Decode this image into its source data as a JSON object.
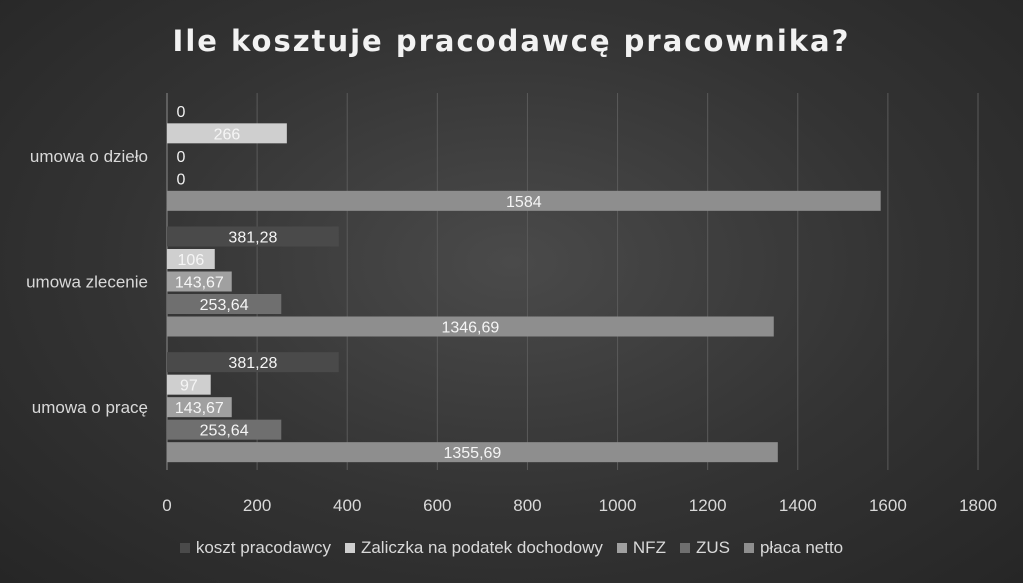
{
  "chart_data": {
    "type": "bar",
    "orientation": "horizontal",
    "title": "Ile kosztuje pracodawcę pracownika?",
    "categories": [
      "umowa o pracę",
      "umowa zlecenie",
      "umowa o dzieło"
    ],
    "category_order": "bottom-to-top",
    "series": [
      {
        "name": "koszt pracodawcy",
        "color": "#4a4a4a",
        "values": [
          381.28,
          381.28,
          0
        ],
        "labels": [
          "381,28",
          "381,28",
          "0"
        ]
      },
      {
        "name": "Zaliczka na podatek dochodowy",
        "color": "#cfcfcf",
        "values": [
          97,
          106,
          266
        ],
        "labels": [
          "97",
          "106",
          "266"
        ]
      },
      {
        "name": "NFZ",
        "color": "#a0a0a0",
        "values": [
          143.67,
          143.67,
          0
        ],
        "labels": [
          "143,67",
          "143,67",
          "0"
        ]
      },
      {
        "name": "ZUS",
        "color": "#6f6f6f",
        "values": [
          253.64,
          253.64,
          0
        ],
        "labels": [
          "253,64",
          "253,64",
          "0"
        ]
      },
      {
        "name": "płaca netto",
        "color": "#8e8e8e",
        "values": [
          1355.69,
          1346.69,
          1584
        ],
        "labels": [
          "1355,69",
          "1346,69",
          "1584"
        ]
      }
    ],
    "xlim": [
      0,
      1800
    ],
    "xticks": [
      0,
      200,
      400,
      600,
      800,
      1000,
      1200,
      1400,
      1600,
      1800
    ],
    "grid": true,
    "legend_position": "bottom"
  }
}
